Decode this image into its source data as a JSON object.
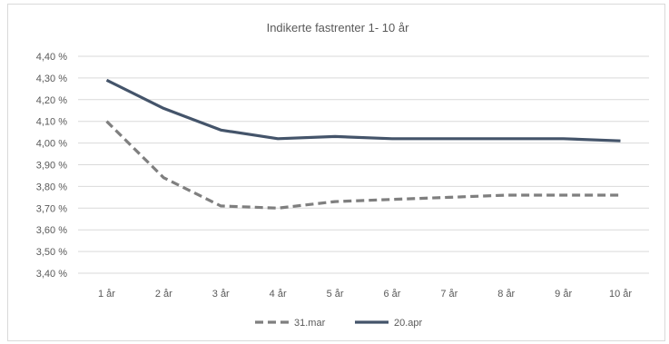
{
  "chart_data": {
    "type": "line",
    "title": "Indikerte fastrenter 1- 10 år",
    "xlabel": "",
    "ylabel": "",
    "categories": [
      "1 år",
      "2 år",
      "3 år",
      "4 år",
      "5 år",
      "6 år",
      "7 år",
      "8 år",
      "9 år",
      "10 år"
    ],
    "ylim": [
      3.4,
      4.4
    ],
    "yticks": [
      3.4,
      3.5,
      3.6,
      3.7,
      3.8,
      3.9,
      4.0,
      4.1,
      4.2,
      4.3,
      4.4
    ],
    "ytick_labels": [
      "3,40 %",
      "3,50 %",
      "3,60 %",
      "3,70 %",
      "3,80 %",
      "3,90 %",
      "4,00 %",
      "4,10 %",
      "4,20 %",
      "4,30 %",
      "4,40 %"
    ],
    "grid": true,
    "legend_position": "bottom",
    "series": [
      {
        "name": "31.mar",
        "style": "dashed",
        "color": "#7f7f7f",
        "values": [
          4.1,
          3.84,
          3.71,
          3.7,
          3.73,
          3.74,
          3.75,
          3.76,
          3.76,
          3.76
        ]
      },
      {
        "name": "20.apr",
        "style": "solid",
        "color": "#44546a",
        "values": [
          4.29,
          4.16,
          4.06,
          4.02,
          4.03,
          4.02,
          4.02,
          4.02,
          4.02,
          4.01
        ]
      }
    ]
  }
}
